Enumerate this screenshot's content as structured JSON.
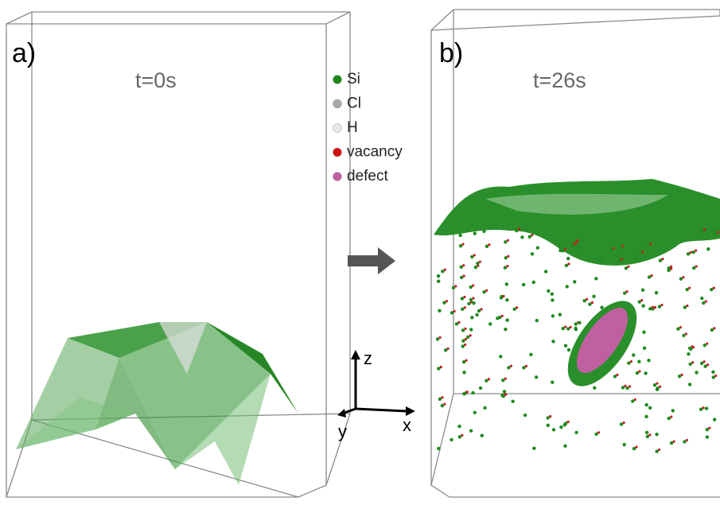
{
  "panels": [
    {
      "label": "a)",
      "time": "t=0s"
    },
    {
      "label": "b)",
      "time": "t=26s"
    }
  ],
  "legend": [
    {
      "label": "Si",
      "color": "#1e8a1e"
    },
    {
      "label": "Cl",
      "color": "#a8a8a8"
    },
    {
      "label": "H",
      "color": "#e8e8e8"
    },
    {
      "label": "vacancy",
      "color": "#d01010"
    },
    {
      "label": "defect",
      "color": "#c060a0"
    }
  ],
  "axes": {
    "z": "z",
    "y": "y",
    "x": "x"
  }
}
